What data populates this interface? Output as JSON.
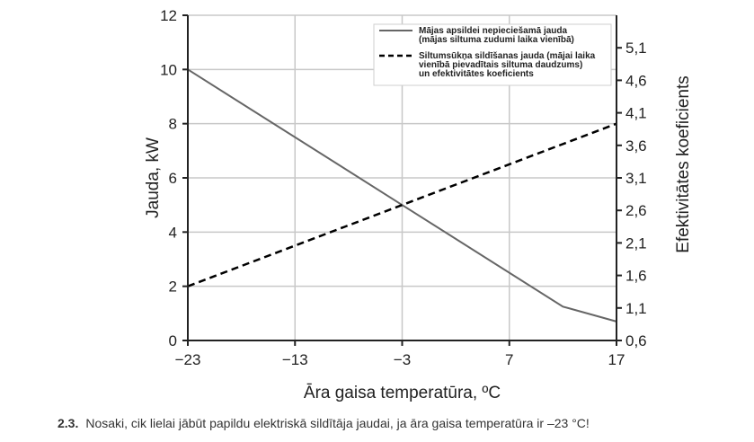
{
  "chart_data": {
    "type": "line",
    "xlabel": "Āra gaisa temperatūra, ºC",
    "ylabel": "Jauda, kW",
    "y2label": "Efektivitātes koeficients",
    "xlim": [
      -23,
      17
    ],
    "ylim": [
      0,
      12
    ],
    "y2lim": [
      0.6,
      5.6
    ],
    "x_ticks": [
      "−23",
      "−13",
      "−3",
      "7",
      "17"
    ],
    "x_tick_values": [
      -23,
      -13,
      -3,
      7,
      17
    ],
    "y_ticks": [
      "0",
      "2",
      "4",
      "6",
      "8",
      "10",
      "12"
    ],
    "y_tick_values": [
      0,
      2,
      4,
      6,
      8,
      10,
      12
    ],
    "y2_ticks": [
      "0,6",
      "1,1",
      "1,6",
      "2,1",
      "2,6",
      "3,1",
      "3,6",
      "4,1",
      "4,6",
      "5,1"
    ],
    "y2_tick_values": [
      0.6,
      1.1,
      1.6,
      2.1,
      2.6,
      3.1,
      3.6,
      4.1,
      4.6,
      5.1
    ],
    "grid": true,
    "legend_position": "top-right",
    "series": [
      {
        "name": "Mājas apsildei nepieciešamā jauda (mājas siltuma zudumi laika vienībā)",
        "legend_lines": [
          "Mājas apsildei nepieciešamā jauda",
          "(mājas siltuma zudumi laika vienībā)"
        ],
        "style": "solid",
        "color": "#666666",
        "x": [
          -23,
          -3,
          12,
          17
        ],
        "y": [
          10,
          5,
          1.25,
          0.7
        ]
      },
      {
        "name": "Siltumsūkņa sildīšanas jauda (mājai laika vienībā pievadītais siltuma daudzums) un efektivitātes koeficients",
        "legend_lines": [
          "Siltumsūkņa sildīšanas jauda (mājai laika",
          "vienībā pievadītais siltuma daudzums)",
          "un efektivitātes koeficients"
        ],
        "style": "dashed",
        "color": "#000000",
        "x": [
          -23,
          17
        ],
        "y": [
          2,
          8
        ]
      }
    ]
  },
  "question": {
    "number": "2.3.",
    "text": "Nosaki, cik lielai jābūt papildu elektriskā sildītāja jaudai, ja āra gaisa temperatūra ir –23 °C!"
  }
}
